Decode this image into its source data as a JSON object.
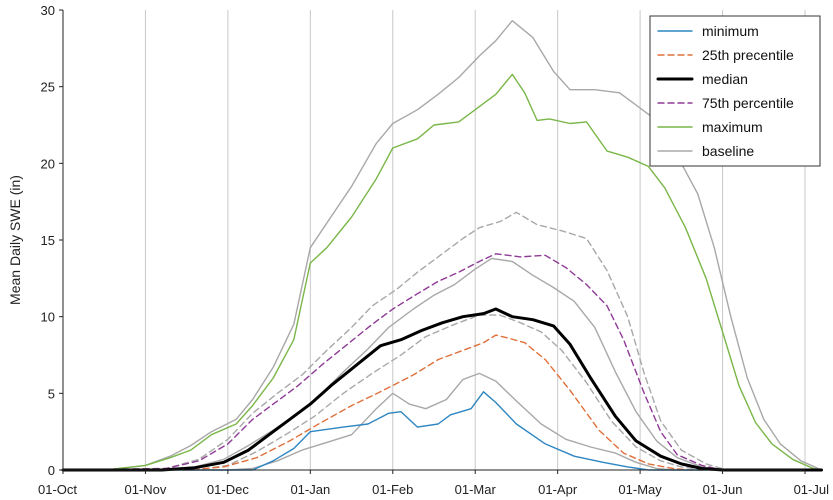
{
  "chart_data": {
    "type": "line",
    "title": "",
    "xlabel": "",
    "ylabel": "Mean Daily SWE (in)",
    "ylim": [
      0,
      30
    ],
    "yticks": [
      0,
      5,
      10,
      15,
      20,
      25,
      30
    ],
    "x_ticks": [
      "01-Oct",
      "01-Nov",
      "01-Dec",
      "01-Jan",
      "01-Feb",
      "01-Mar",
      "01-Apr",
      "01-May",
      "01-Jun",
      "01-Jul"
    ],
    "x_unit": "month index from 01-Oct",
    "grid": "vertical",
    "legend_position": "top-right",
    "series": [
      {
        "name": "minimum",
        "color": "#2e86c1",
        "style": "solid",
        "points": [
          [
            0,
            0
          ],
          [
            1.8,
            0
          ],
          [
            2.3,
            0
          ],
          [
            2.55,
            0.6
          ],
          [
            2.8,
            1.4
          ],
          [
            3.0,
            2.5
          ],
          [
            3.4,
            2.8
          ],
          [
            3.7,
            3.0
          ],
          [
            3.95,
            3.7
          ],
          [
            4.1,
            3.8
          ],
          [
            4.3,
            2.8
          ],
          [
            4.55,
            3.0
          ],
          [
            4.7,
            3.6
          ],
          [
            4.95,
            4.0
          ],
          [
            5.1,
            5.1
          ],
          [
            5.25,
            4.4
          ],
          [
            5.5,
            3.0
          ],
          [
            5.85,
            1.7
          ],
          [
            6.2,
            0.9
          ],
          [
            6.55,
            0.5
          ],
          [
            6.85,
            0.2
          ],
          [
            7.1,
            0
          ],
          [
            9.2,
            0
          ]
        ]
      },
      {
        "name": "25th precentile",
        "color": "#e0703a",
        "style": "dashed",
        "points": [
          [
            0,
            0
          ],
          [
            1.5,
            0
          ],
          [
            1.95,
            0.2
          ],
          [
            2.35,
            0.8
          ],
          [
            2.75,
            1.9
          ],
          [
            3.1,
            3.0
          ],
          [
            3.5,
            4.2
          ],
          [
            3.85,
            5.1
          ],
          [
            4.25,
            6.2
          ],
          [
            4.55,
            7.2
          ],
          [
            4.85,
            7.8
          ],
          [
            5.1,
            8.3
          ],
          [
            5.25,
            8.8
          ],
          [
            5.4,
            8.6
          ],
          [
            5.6,
            8.3
          ],
          [
            5.85,
            7.2
          ],
          [
            6.15,
            5.2
          ],
          [
            6.5,
            2.6
          ],
          [
            6.8,
            1.1
          ],
          [
            7.1,
            0.4
          ],
          [
            7.4,
            0.1
          ],
          [
            7.6,
            0
          ],
          [
            9.2,
            0
          ]
        ]
      },
      {
        "name": "median",
        "color": "#000000",
        "style": "thick",
        "points": [
          [
            0,
            0
          ],
          [
            1.2,
            0
          ],
          [
            1.6,
            0.15
          ],
          [
            1.95,
            0.5
          ],
          [
            2.25,
            1.3
          ],
          [
            2.5,
            2.3
          ],
          [
            2.75,
            3.3
          ],
          [
            3.0,
            4.3
          ],
          [
            3.25,
            5.5
          ],
          [
            3.55,
            6.8
          ],
          [
            3.85,
            8.1
          ],
          [
            4.1,
            8.5
          ],
          [
            4.35,
            9.1
          ],
          [
            4.6,
            9.6
          ],
          [
            4.85,
            10.0
          ],
          [
            5.1,
            10.2
          ],
          [
            5.25,
            10.5
          ],
          [
            5.45,
            10.0
          ],
          [
            5.7,
            9.8
          ],
          [
            5.95,
            9.4
          ],
          [
            6.15,
            8.2
          ],
          [
            6.4,
            6.0
          ],
          [
            6.7,
            3.5
          ],
          [
            6.95,
            1.9
          ],
          [
            7.25,
            0.9
          ],
          [
            7.5,
            0.4
          ],
          [
            7.75,
            0.1
          ],
          [
            8.0,
            0
          ],
          [
            9.2,
            0
          ]
        ]
      },
      {
        "name": "75th percentile",
        "color": "#8e3a96",
        "style": "dashed",
        "points": [
          [
            0,
            0
          ],
          [
            1.25,
            0.1
          ],
          [
            1.65,
            0.6
          ],
          [
            2.0,
            1.7
          ],
          [
            2.3,
            3.3
          ],
          [
            2.6,
            4.5
          ],
          [
            2.85,
            5.5
          ],
          [
            3.15,
            6.9
          ],
          [
            3.45,
            8.2
          ],
          [
            3.75,
            9.5
          ],
          [
            4.0,
            10.5
          ],
          [
            4.3,
            11.5
          ],
          [
            4.55,
            12.3
          ],
          [
            4.8,
            12.9
          ],
          [
            5.05,
            13.6
          ],
          [
            5.25,
            14.1
          ],
          [
            5.55,
            13.9
          ],
          [
            5.85,
            14.0
          ],
          [
            6.1,
            13.2
          ],
          [
            6.35,
            12.1
          ],
          [
            6.6,
            10.7
          ],
          [
            6.8,
            8.5
          ],
          [
            7.05,
            5.0
          ],
          [
            7.25,
            2.5
          ],
          [
            7.45,
            1.0
          ],
          [
            7.75,
            0.3
          ],
          [
            8.0,
            0
          ],
          [
            9.2,
            0
          ]
        ]
      },
      {
        "name": "maximum",
        "color": "#7ab648",
        "style": "solid",
        "points": [
          [
            0,
            0
          ],
          [
            0.6,
            0.05
          ],
          [
            1.0,
            0.3
          ],
          [
            1.3,
            0.8
          ],
          [
            1.55,
            1.3
          ],
          [
            1.8,
            2.3
          ],
          [
            2.1,
            3.0
          ],
          [
            2.3,
            4.2
          ],
          [
            2.55,
            6.0
          ],
          [
            2.8,
            8.5
          ],
          [
            3.0,
            13.5
          ],
          [
            3.2,
            14.5
          ],
          [
            3.5,
            16.5
          ],
          [
            3.8,
            19.0
          ],
          [
            4.0,
            21.0
          ],
          [
            4.3,
            21.6
          ],
          [
            4.5,
            22.5
          ],
          [
            4.8,
            22.7
          ],
          [
            5.0,
            23.5
          ],
          [
            5.25,
            24.5
          ],
          [
            5.45,
            25.8
          ],
          [
            5.6,
            24.6
          ],
          [
            5.75,
            22.8
          ],
          [
            5.9,
            22.9
          ],
          [
            6.15,
            22.6
          ],
          [
            6.35,
            22.7
          ],
          [
            6.6,
            20.8
          ],
          [
            6.85,
            20.4
          ],
          [
            7.1,
            19.8
          ],
          [
            7.3,
            18.4
          ],
          [
            7.55,
            15.8
          ],
          [
            7.8,
            12.5
          ],
          [
            8.0,
            9.0
          ],
          [
            8.2,
            5.5
          ],
          [
            8.4,
            3.1
          ],
          [
            8.6,
            1.7
          ],
          [
            8.85,
            0.7
          ],
          [
            9.1,
            0.1
          ],
          [
            9.2,
            0
          ]
        ]
      },
      {
        "name": "baseline",
        "color": "#a8a8a8",
        "style": "solid",
        "points": [
          [
            0,
            0
          ],
          [
            0.6,
            0.05
          ],
          [
            1.0,
            0.3
          ],
          [
            1.3,
            0.9
          ],
          [
            1.55,
            1.6
          ],
          [
            1.8,
            2.5
          ],
          [
            2.1,
            3.3
          ],
          [
            2.3,
            4.6
          ],
          [
            2.55,
            6.7
          ],
          [
            2.8,
            9.5
          ],
          [
            3.0,
            14.5
          ],
          [
            3.25,
            16.5
          ],
          [
            3.5,
            18.5
          ],
          [
            3.8,
            21.3
          ],
          [
            4.0,
            22.6
          ],
          [
            4.3,
            23.5
          ],
          [
            4.55,
            24.5
          ],
          [
            4.8,
            25.6
          ],
          [
            5.05,
            27.0
          ],
          [
            5.25,
            28.0
          ],
          [
            5.45,
            29.3
          ],
          [
            5.7,
            28.2
          ],
          [
            5.95,
            26.0
          ],
          [
            6.15,
            24.8
          ],
          [
            6.45,
            24.8
          ],
          [
            6.75,
            24.6
          ],
          [
            7.0,
            23.6
          ],
          [
            7.2,
            22.8
          ],
          [
            7.45,
            20.5
          ],
          [
            7.7,
            18.0
          ],
          [
            7.9,
            14.5
          ],
          [
            8.1,
            10.0
          ],
          [
            8.3,
            6.0
          ],
          [
            8.5,
            3.3
          ],
          [
            8.7,
            1.7
          ],
          [
            8.95,
            0.6
          ],
          [
            9.2,
            0
          ]
        ]
      }
    ],
    "unlabeled_series": [
      {
        "color": "#a8a8a8",
        "style": "solid",
        "points": [
          [
            0,
            0
          ],
          [
            2.0,
            0
          ],
          [
            2.3,
            0.1
          ],
          [
            2.6,
            0.6
          ],
          [
            2.9,
            1.3
          ],
          [
            3.2,
            1.8
          ],
          [
            3.5,
            2.3
          ],
          [
            3.8,
            4.0
          ],
          [
            4.0,
            5.0
          ],
          [
            4.2,
            4.3
          ],
          [
            4.4,
            4.0
          ],
          [
            4.65,
            4.6
          ],
          [
            4.85,
            5.9
          ],
          [
            5.05,
            6.3
          ],
          [
            5.25,
            5.8
          ],
          [
            5.5,
            4.5
          ],
          [
            5.8,
            3.0
          ],
          [
            6.1,
            2.0
          ],
          [
            6.4,
            1.5
          ],
          [
            6.7,
            1.1
          ],
          [
            6.95,
            0.5
          ],
          [
            7.2,
            0.1
          ],
          [
            7.4,
            0
          ],
          [
            9.2,
            0
          ]
        ]
      },
      {
        "color": "#a8a8a8",
        "style": "dashed",
        "points": [
          [
            0,
            0
          ],
          [
            1.6,
            0
          ],
          [
            2.0,
            0.3
          ],
          [
            2.35,
            1.2
          ],
          [
            2.7,
            2.3
          ],
          [
            3.05,
            3.5
          ],
          [
            3.4,
            5.0
          ],
          [
            3.75,
            6.3
          ],
          [
            4.1,
            7.5
          ],
          [
            4.4,
            8.7
          ],
          [
            4.75,
            9.5
          ],
          [
            5.05,
            10.1
          ],
          [
            5.3,
            10.1
          ],
          [
            5.55,
            9.6
          ],
          [
            5.8,
            9.0
          ],
          [
            6.05,
            7.8
          ],
          [
            6.35,
            5.7
          ],
          [
            6.65,
            3.2
          ],
          [
            6.95,
            1.5
          ],
          [
            7.25,
            0.6
          ],
          [
            7.5,
            0.2
          ],
          [
            7.8,
            0
          ],
          [
            9.2,
            0
          ]
        ]
      },
      {
        "color": "#a8a8a8",
        "style": "solid",
        "points": [
          [
            0,
            0
          ],
          [
            1.2,
            0
          ],
          [
            1.6,
            0.2
          ],
          [
            1.95,
            0.7
          ],
          [
            2.25,
            1.6
          ],
          [
            2.55,
            2.6
          ],
          [
            2.85,
            3.7
          ],
          [
            3.1,
            4.8
          ],
          [
            3.4,
            6.4
          ],
          [
            3.7,
            7.9
          ],
          [
            3.95,
            9.3
          ],
          [
            4.25,
            10.5
          ],
          [
            4.5,
            11.4
          ],
          [
            4.75,
            12.1
          ],
          [
            5.0,
            13.1
          ],
          [
            5.2,
            13.8
          ],
          [
            5.45,
            13.6
          ],
          [
            5.7,
            12.7
          ],
          [
            5.95,
            11.9
          ],
          [
            6.2,
            11.0
          ],
          [
            6.45,
            9.3
          ],
          [
            6.7,
            6.4
          ],
          [
            6.95,
            3.8
          ],
          [
            7.2,
            1.9
          ],
          [
            7.45,
            0.8
          ],
          [
            7.75,
            0.2
          ],
          [
            8.0,
            0
          ],
          [
            9.2,
            0
          ]
        ]
      },
      {
        "color": "#a8a8a8",
        "style": "dashed",
        "points": [
          [
            0,
            0
          ],
          [
            1.25,
            0.1
          ],
          [
            1.65,
            0.7
          ],
          [
            2.0,
            2.0
          ],
          [
            2.3,
            3.7
          ],
          [
            2.6,
            5.0
          ],
          [
            2.9,
            6.2
          ],
          [
            3.2,
            7.8
          ],
          [
            3.5,
            9.3
          ],
          [
            3.75,
            10.7
          ],
          [
            4.05,
            11.8
          ],
          [
            4.3,
            12.9
          ],
          [
            4.55,
            13.9
          ],
          [
            4.85,
            15.1
          ],
          [
            5.05,
            15.8
          ],
          [
            5.3,
            16.2
          ],
          [
            5.5,
            16.8
          ],
          [
            5.75,
            16.0
          ],
          [
            6.05,
            15.6
          ],
          [
            6.35,
            15.1
          ],
          [
            6.6,
            13.0
          ],
          [
            6.85,
            10.0
          ],
          [
            7.05,
            6.3
          ],
          [
            7.25,
            3.2
          ],
          [
            7.5,
            1.3
          ],
          [
            7.8,
            0.4
          ],
          [
            8.05,
            0
          ],
          [
            9.2,
            0
          ]
        ]
      }
    ]
  }
}
